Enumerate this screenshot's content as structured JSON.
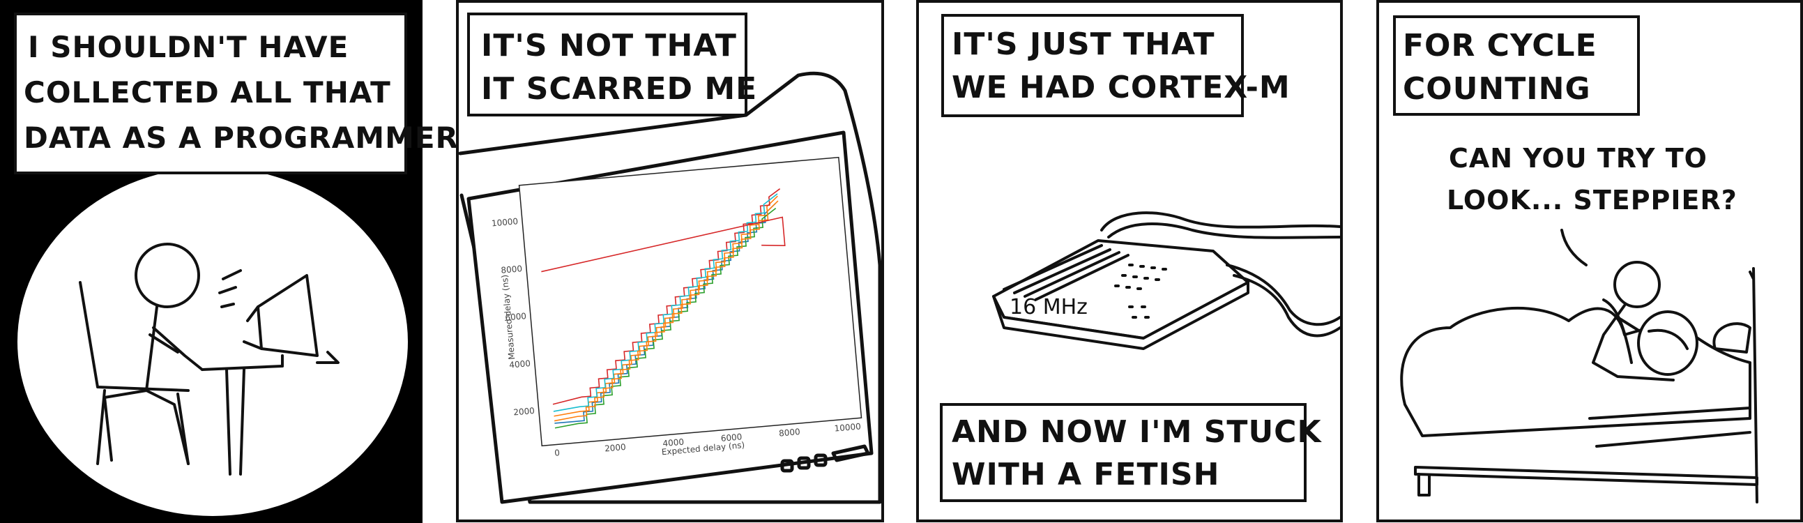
{
  "panels": [
    {
      "caption_lines": [
        "I SHOULDN'T HAVE",
        "COLLECTED ALL THAT",
        "DATA AS A PROGRAMMER"
      ]
    },
    {
      "caption_lines": [
        "IT'S NOT THAT",
        "IT SCARRED ME"
      ],
      "plot": {
        "xlabel": "Expected delay (ns)",
        "ylabel": "Measured delay (ns)",
        "x_ticks": [
          "0",
          "2000",
          "4000",
          "6000",
          "8000",
          "10000"
        ],
        "y_ticks": [
          "2000",
          "4000",
          "6000",
          "8000",
          "10000"
        ]
      }
    },
    {
      "caption_lines": [
        "IT'S JUST THAT",
        "WE HAD CORTEX-M"
      ],
      "device_label": "16 MHz",
      "bottom_caption_lines": [
        "AND NOW I'M STUCK",
        "WITH A FETISH"
      ]
    },
    {
      "caption_lines": [
        "FOR CYCLE",
        "COUNTING"
      ],
      "speech_lines": [
        "CAN YOU TRY TO",
        "LOOK... STEPPIER?"
      ]
    }
  ],
  "chart_data": {
    "type": "line",
    "xlabel": "Expected delay (ns)",
    "ylabel": "Measured delay (ns)",
    "xlim": [
      -500,
      10500
    ],
    "ylim": [
      500,
      11500
    ],
    "series": [
      {
        "values": [
          [
            0,
            1400
          ],
          [
            700,
            1400
          ],
          [
            7800,
            9400
          ],
          [
            8200,
            9800
          ]
        ],
        "color": "#1f77b4"
      },
      {
        "values": [
          [
            0,
            1700
          ],
          [
            900,
            1800
          ],
          [
            7900,
            9700
          ],
          [
            8300,
            10100
          ]
        ],
        "color": "#ff7f0e"
      },
      {
        "values": [
          [
            0,
            1200
          ],
          [
            800,
            1300
          ],
          [
            7700,
            9200
          ],
          [
            8200,
            9600
          ]
        ],
        "color": "#2ca02c"
      },
      {
        "values": [
          [
            0,
            2200
          ],
          [
            1000,
            2400
          ],
          [
            8000,
            10100
          ],
          [
            8400,
            10400
          ]
        ],
        "color": "#d62728"
      },
      {
        "values": [
          [
            0,
            1900
          ],
          [
            900,
            2000
          ],
          [
            7800,
            9800
          ],
          [
            8300,
            10200
          ]
        ],
        "color": "#17becf"
      },
      {
        "values": [
          [
            0,
            1500
          ],
          [
            800,
            1600
          ],
          [
            7900,
            9500
          ],
          [
            8300,
            9900
          ]
        ],
        "color": "#ff7f0e"
      },
      {
        "values": [
          [
            0,
            7800
          ],
          [
            8400,
            9200
          ],
          [
            8400,
            8000
          ],
          [
            7600,
            8100
          ]
        ],
        "color": "#d62728"
      }
    ]
  }
}
